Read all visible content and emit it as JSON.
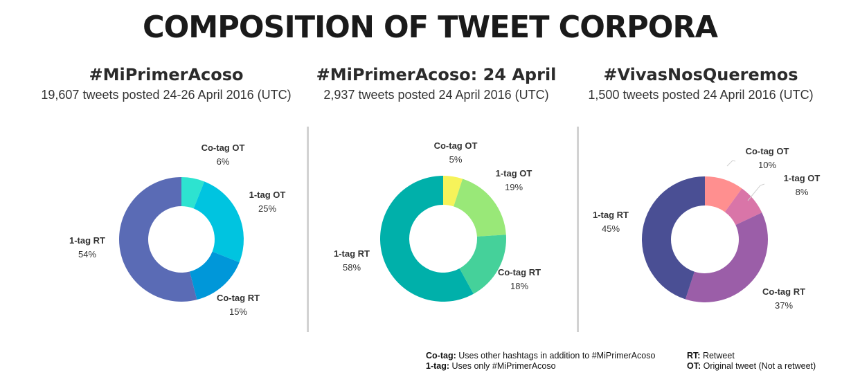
{
  "title": "COMPOSITION OF TWEET CORPORA",
  "chart_data": [
    {
      "type": "pie",
      "donut": true,
      "title": "#MiPrimerAcoso",
      "subtitle": "19,607 tweets posted 24-26 April 2016 (UTC)",
      "slices": [
        {
          "name": "Co-tag OT",
          "value": 6,
          "label": "6%",
          "color": "#2de3d0"
        },
        {
          "name": "1-tag OT",
          "value": 25,
          "label": "25%",
          "color": "#00c4e0"
        },
        {
          "name": "Co-tag RT",
          "value": 15,
          "label": "15%",
          "color": "#0097d9"
        },
        {
          "name": "1-tag RT",
          "value": 54,
          "label": "54%",
          "color": "#5a6bb5"
        }
      ]
    },
    {
      "type": "pie",
      "donut": true,
      "title": "#MiPrimerAcoso: 24 April",
      "subtitle": "2,937 tweets posted 24 April 2016 (UTC)",
      "slices": [
        {
          "name": "Co-tag OT",
          "value": 5,
          "label": "5%",
          "color": "#f6f35a"
        },
        {
          "name": "1-tag OT",
          "value": 19,
          "label": "19%",
          "color": "#99e878"
        },
        {
          "name": "Co-tag RT",
          "value": 18,
          "label": "18%",
          "color": "#45d19a"
        },
        {
          "name": "1-tag RT",
          "value": 58,
          "label": "58%",
          "color": "#00b0aa"
        }
      ]
    },
    {
      "type": "pie",
      "donut": true,
      "title": "#VivasNosQueremos",
      "subtitle": "1,500 tweets posted 24 April 2016 (UTC)",
      "slices": [
        {
          "name": "Co-tag OT",
          "value": 10,
          "label": "10%",
          "color": "#ff8f8f"
        },
        {
          "name": "1-tag OT",
          "value": 8,
          "label": "8%",
          "color": "#d975a8"
        },
        {
          "name": "Co-tag RT",
          "value": 37,
          "label": "37%",
          "color": "#9b5ea8"
        },
        {
          "name": "1-tag RT",
          "value": 45,
          "label": "45%",
          "color": "#4a4f94"
        }
      ]
    }
  ],
  "legend": {
    "cotag_term": "Co-tag:",
    "cotag_def": "Uses other hashtags in addition to #MiPrimerAcoso",
    "onetag_term": "1-tag:",
    "onetag_def": "Uses only #MiPrimerAcoso",
    "rt_term": "RT:",
    "rt_def": "Retweet",
    "ot_term": "OT:",
    "ot_def": "Original tweet (Not a retweet)"
  }
}
